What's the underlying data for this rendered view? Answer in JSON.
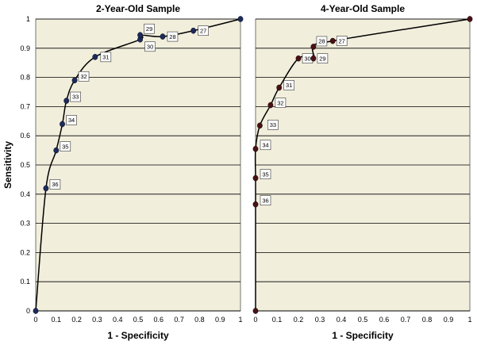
{
  "chart_data": [
    {
      "type": "line",
      "title": "2-Year-Old Sample",
      "xlabel": "1 - Specificity",
      "ylabel": "Sensitivity",
      "xlim": [
        0,
        1
      ],
      "ylim": [
        0,
        1
      ],
      "xticks": [
        "0",
        "0.1",
        "0.2",
        "0.3",
        "0.4",
        "0.5",
        "0.6",
        "0.7",
        "0.8",
        "0.9",
        "1"
      ],
      "yticks": [
        "0",
        "0.1",
        "0.2",
        "0.3",
        "0.4",
        "0.5",
        "0.6",
        "0.7",
        "0.8",
        "0.9",
        "1"
      ],
      "grid": "horizontal",
      "point_color": "#1c2a5c",
      "points": [
        {
          "x": 0,
          "y": 0,
          "label": ""
        },
        {
          "x": 0.05,
          "y": 0.42,
          "label": "36"
        },
        {
          "x": 0.1,
          "y": 0.55,
          "label": "35"
        },
        {
          "x": 0.13,
          "y": 0.64,
          "label": "34"
        },
        {
          "x": 0.15,
          "y": 0.72,
          "label": "33"
        },
        {
          "x": 0.19,
          "y": 0.79,
          "label": "32"
        },
        {
          "x": 0.29,
          "y": 0.87,
          "label": "31"
        },
        {
          "x": 0.51,
          "y": 0.93,
          "label": "30"
        },
        {
          "x": 0.51,
          "y": 0.945,
          "label": "29"
        },
        {
          "x": 0.62,
          "y": 0.94,
          "label": "28"
        },
        {
          "x": 0.77,
          "y": 0.96,
          "label": "27"
        },
        {
          "x": 1,
          "y": 1,
          "label": ""
        }
      ]
    },
    {
      "type": "line",
      "title": "4-Year-Old Sample",
      "xlabel": "1 - Specificity",
      "ylabel": "",
      "xlim": [
        0,
        1
      ],
      "ylim": [
        0,
        1
      ],
      "xticks": [
        "0",
        "0.1",
        "0.2",
        "0.3",
        "0.4",
        "0.5",
        "0.6",
        "0.7",
        "0.8",
        "0.9",
        "1"
      ],
      "yticks": [],
      "grid": "horizontal",
      "point_color": "#4a1014",
      "points": [
        {
          "x": 0,
          "y": 0,
          "label": ""
        },
        {
          "x": 0,
          "y": 0.365,
          "label": "36"
        },
        {
          "x": 0,
          "y": 0.455,
          "label": "35"
        },
        {
          "x": 0,
          "y": 0.555,
          "label": "34"
        },
        {
          "x": 0.02,
          "y": 0.635,
          "label": "33"
        },
        {
          "x": 0.07,
          "y": 0.705,
          "label": "32"
        },
        {
          "x": 0.11,
          "y": 0.765,
          "label": "31"
        },
        {
          "x": 0.2,
          "y": 0.865,
          "label": "30"
        },
        {
          "x": 0.27,
          "y": 0.865,
          "label": "29"
        },
        {
          "x": 0.27,
          "y": 0.905,
          "label": "28"
        },
        {
          "x": 0.36,
          "y": 0.925,
          "label": "27"
        },
        {
          "x": 1,
          "y": 1,
          "label": ""
        }
      ]
    }
  ]
}
